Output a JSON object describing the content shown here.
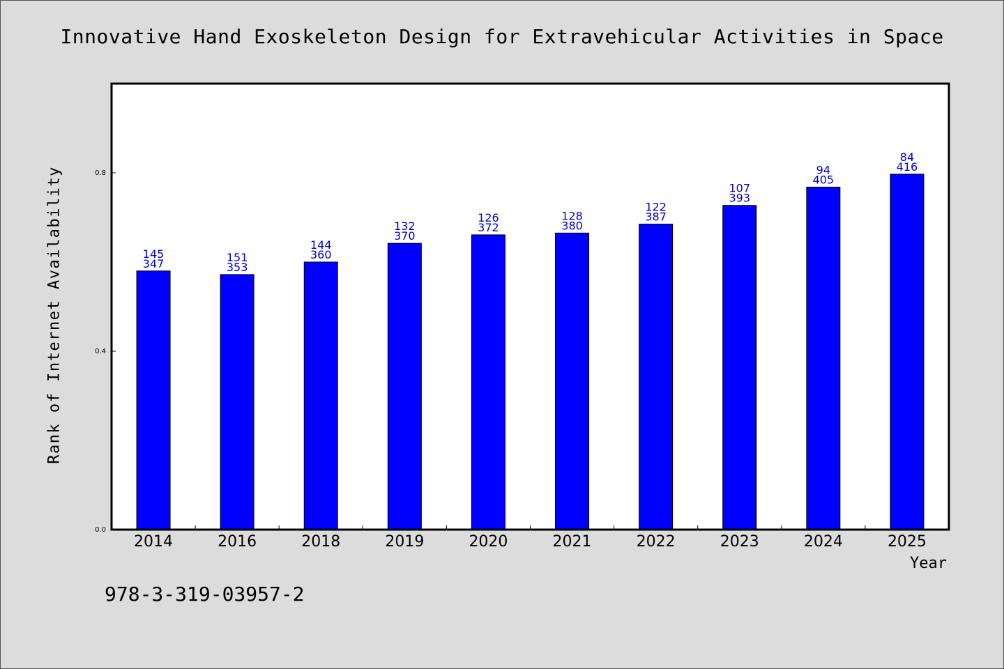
{
  "chart_data": {
    "type": "bar",
    "title": "Innovative Hand Exoskeleton Design for Extravehicular Activities in Space",
    "xlabel": "Year",
    "ylabel": "Rank of Internet Availability",
    "categories": [
      "2014",
      "2016",
      "2018",
      "2019",
      "2020",
      "2021",
      "2022",
      "2023",
      "2024",
      "2025"
    ],
    "values": [
      0.58,
      0.572,
      0.6,
      0.642,
      0.661,
      0.665,
      0.685,
      0.727,
      0.768,
      0.797
    ],
    "data_labels": [
      [
        "145",
        "347"
      ],
      [
        "151",
        "353"
      ],
      [
        "144",
        "360"
      ],
      [
        "132",
        "370"
      ],
      [
        "126",
        "372"
      ],
      [
        "128",
        "380"
      ],
      [
        "122",
        "387"
      ],
      [
        "107",
        "393"
      ],
      [
        "94",
        "405"
      ],
      [
        "84",
        "416"
      ]
    ],
    "ylim": [
      0,
      1.0
    ],
    "yticks": [
      0.0,
      0.4,
      0.8
    ],
    "ytick_labels": [
      "0.0",
      "0.4",
      "0.8"
    ],
    "grid": false,
    "colors": {
      "bar": "#0000ff",
      "label": "#0000cc",
      "background": "#dcdcdc",
      "plot_bg": "#ffffff"
    }
  },
  "annotation": "978-3-319-03957-2"
}
